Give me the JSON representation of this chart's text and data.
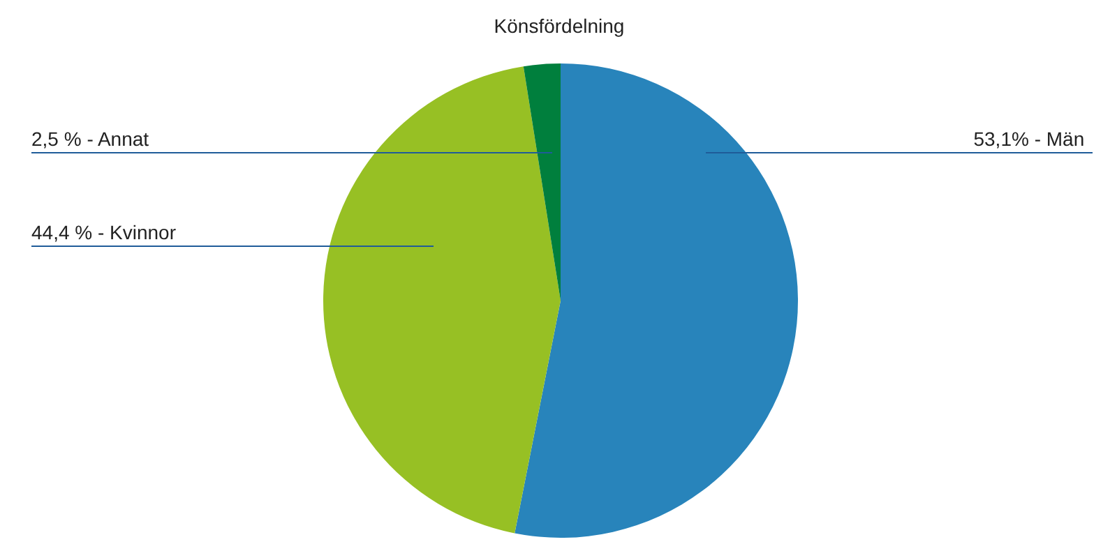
{
  "chart_data": {
    "type": "pie",
    "title": "Könsfördelning",
    "categories": [
      "Män",
      "Kvinnor",
      "Annat"
    ],
    "values": [
      53.1,
      44.4,
      2.5
    ],
    "value_labels": [
      "53,1% ",
      "44,4 %",
      "2,5 %"
    ],
    "colors": [
      "#2884bb",
      "#97c024",
      "#007f3d"
    ]
  }
}
